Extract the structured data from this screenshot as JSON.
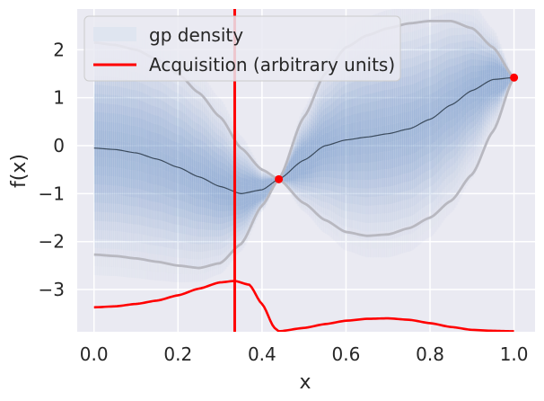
{
  "chart_data": {
    "type": "line",
    "title": "",
    "xlabel": "x",
    "ylabel": "f(x)",
    "xlim": [
      -0.04,
      1.05
    ],
    "ylim": [
      -3.88,
      2.85
    ],
    "xticks": [
      0.0,
      0.2,
      0.4,
      0.6,
      0.8,
      1.0
    ],
    "xtick_labels": [
      "0.0",
      "0.2",
      "0.4",
      "0.6",
      "0.8",
      "1.0"
    ],
    "yticks": [
      -3,
      -2,
      -1,
      0,
      1,
      2
    ],
    "ytick_labels": [
      "−3",
      "−2",
      "−1",
      "0",
      "1",
      "2"
    ],
    "grid": true,
    "legend_position": "top-left",
    "legend": [
      {
        "label": "gp density",
        "style": "band"
      },
      {
        "label": "Acquisition (arbitrary units)",
        "style": "line",
        "color": "#ff0000"
      }
    ],
    "colors": {
      "background": "#eaeaf2",
      "grid": "#ffffff",
      "density": "#6e94c8",
      "mean": "#3a4a5c",
      "confidence": "#b8b8c0",
      "acquisition": "#ff0000"
    },
    "observations": [
      {
        "x": 0.44,
        "y": -0.7
      },
      {
        "x": 1.0,
        "y": 1.42
      }
    ],
    "next_point_x": 0.335,
    "series": [
      {
        "role": "mean",
        "x": [
          0.0,
          0.05,
          0.1,
          0.15,
          0.2,
          0.25,
          0.3,
          0.35,
          0.4,
          0.44,
          0.5,
          0.55,
          0.6,
          0.65,
          0.7,
          0.75,
          0.8,
          0.85,
          0.9,
          0.95,
          1.0
        ],
        "y": [
          -0.05,
          -0.08,
          -0.15,
          -0.28,
          -0.45,
          -0.65,
          -0.85,
          -1.0,
          -0.92,
          -0.7,
          -0.3,
          0.0,
          0.12,
          0.18,
          0.25,
          0.35,
          0.55,
          0.85,
          1.15,
          1.38,
          1.42
        ]
      },
      {
        "role": "upper",
        "x": [
          0.0,
          0.05,
          0.1,
          0.15,
          0.2,
          0.25,
          0.3,
          0.35,
          0.4,
          0.44,
          0.5,
          0.55,
          0.6,
          0.65,
          0.7,
          0.75,
          0.8,
          0.85,
          0.9,
          0.95,
          1.0
        ],
        "y": [
          2.15,
          2.1,
          2.0,
          1.8,
          1.5,
          1.1,
          0.6,
          -0.05,
          -0.5,
          -0.7,
          0.6,
          1.5,
          2.05,
          2.3,
          2.45,
          2.55,
          2.6,
          2.6,
          2.45,
          2.05,
          1.42
        ]
      },
      {
        "role": "lower",
        "x": [
          0.0,
          0.05,
          0.1,
          0.15,
          0.2,
          0.25,
          0.3,
          0.35,
          0.4,
          0.44,
          0.5,
          0.55,
          0.6,
          0.65,
          0.7,
          0.75,
          0.8,
          0.85,
          0.9,
          0.95,
          1.0
        ],
        "y": [
          -2.27,
          -2.3,
          -2.35,
          -2.42,
          -2.5,
          -2.55,
          -2.45,
          -2.05,
          -1.25,
          -0.7,
          -1.2,
          -1.55,
          -1.8,
          -1.88,
          -1.85,
          -1.72,
          -1.5,
          -1.15,
          -0.6,
          0.3,
          1.42
        ]
      },
      {
        "role": "acquisition",
        "name": "Acquisition (arbitrary units)",
        "x": [
          0.0,
          0.05,
          0.1,
          0.15,
          0.2,
          0.25,
          0.3,
          0.335,
          0.37,
          0.4,
          0.43,
          0.44,
          0.5,
          0.55,
          0.6,
          0.65,
          0.7,
          0.75,
          0.8,
          0.85,
          0.9,
          0.95,
          1.0
        ],
        "y": [
          -3.37,
          -3.35,
          -3.3,
          -3.23,
          -3.12,
          -2.98,
          -2.85,
          -2.82,
          -2.9,
          -3.3,
          -3.8,
          -3.87,
          -3.8,
          -3.72,
          -3.65,
          -3.61,
          -3.6,
          -3.63,
          -3.7,
          -3.78,
          -3.84,
          -3.86,
          -3.87
        ]
      }
    ]
  }
}
